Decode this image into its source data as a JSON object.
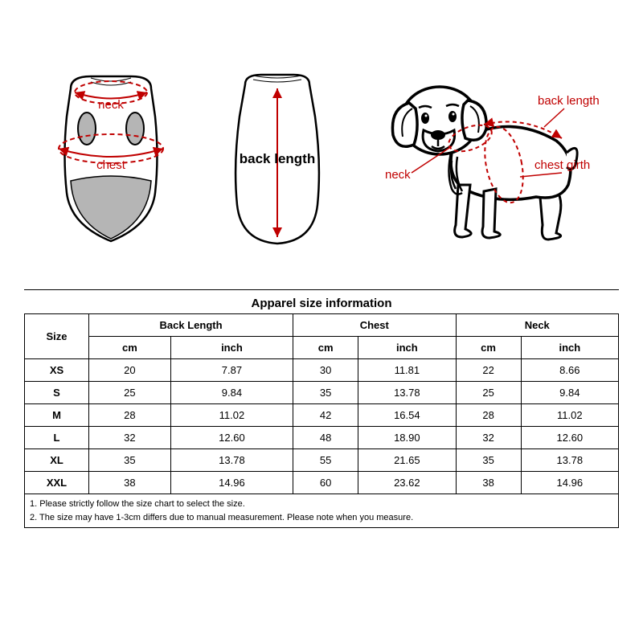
{
  "diagram": {
    "front_labels": {
      "neck": "neck",
      "chest": "chest"
    },
    "back_label": "back length",
    "dog_labels": {
      "neck": "neck",
      "back": "back length",
      "chest": "chest girth"
    },
    "colors": {
      "line_red": "#c00000",
      "line_black": "#000000",
      "fill_gray": "#b5b5b5",
      "fill_white": "#ffffff"
    }
  },
  "table": {
    "title": "Apparel size information",
    "columns": [
      "Size",
      "Back Length",
      "Chest",
      "Neck"
    ],
    "subcolumns": [
      "cm",
      "inch"
    ],
    "rows": [
      {
        "size": "XS",
        "back_cm": "20",
        "back_in": "7.87",
        "chest_cm": "30",
        "chest_in": "11.81",
        "neck_cm": "22",
        "neck_in": "8.66"
      },
      {
        "size": "S",
        "back_cm": "25",
        "back_in": "9.84",
        "chest_cm": "35",
        "chest_in": "13.78",
        "neck_cm": "25",
        "neck_in": "9.84"
      },
      {
        "size": "M",
        "back_cm": "28",
        "back_in": "11.02",
        "chest_cm": "42",
        "chest_in": "16.54",
        "neck_cm": "28",
        "neck_in": "11.02"
      },
      {
        "size": "L",
        "back_cm": "32",
        "back_in": "12.60",
        "chest_cm": "48",
        "chest_in": "18.90",
        "neck_cm": "32",
        "neck_in": "12.60"
      },
      {
        "size": "XL",
        "back_cm": "35",
        "back_in": "13.78",
        "chest_cm": "55",
        "chest_in": "21.65",
        "neck_cm": "35",
        "neck_in": "13.78"
      },
      {
        "size": "XXL",
        "back_cm": "38",
        "back_in": "14.96",
        "chest_cm": "60",
        "chest_in": "23.62",
        "neck_cm": "38",
        "neck_in": "14.96"
      }
    ]
  },
  "notes": [
    "1. Please strictly follow the size chart  to select the size.",
    "2. The size may have 1-3cm differs due to manual measurement. Please note when you measure."
  ]
}
